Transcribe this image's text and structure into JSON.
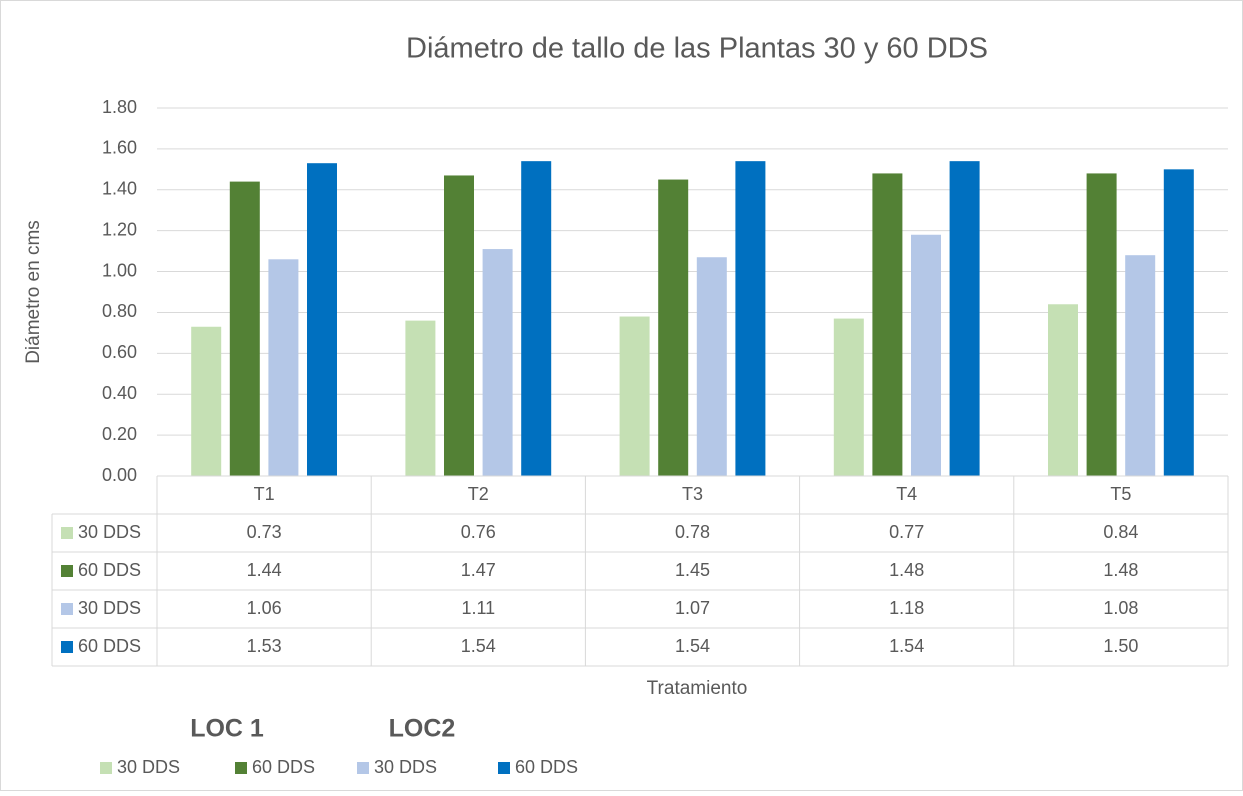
{
  "chart_data": {
    "type": "bar",
    "title": "Diámetro de tallo de las Plantas 30 y 60 DDS",
    "x_label": "Tratamiento",
    "y_label": "Diámetro en cms",
    "annotations": [
      "LOC 1",
      "LOC2"
    ],
    "categories": [
      "T1",
      "T2",
      "T3",
      "T4",
      "T5"
    ],
    "series": [
      {
        "name": "30 DDS",
        "color": "#c5e0b4",
        "values": [
          0.73,
          0.76,
          0.78,
          0.77,
          0.84
        ],
        "value_labels": [
          "0.73",
          "0.76",
          "0.78",
          "0.77",
          "0.84"
        ]
      },
      {
        "name": "60 DDS",
        "color": "#538135",
        "values": [
          1.44,
          1.47,
          1.45,
          1.48,
          1.48
        ],
        "value_labels": [
          "1.44",
          "1.47",
          "1.45",
          "1.48",
          "1.48"
        ]
      },
      {
        "name": "30 DDS",
        "color": "#b4c7e7",
        "values": [
          1.06,
          1.11,
          1.07,
          1.18,
          1.08
        ],
        "value_labels": [
          "1.06",
          "1.11",
          "1.07",
          "1.18",
          "1.08"
        ]
      },
      {
        "name": "60 DDS",
        "color": "#0070c0",
        "values": [
          1.53,
          1.54,
          1.54,
          1.54,
          1.5
        ],
        "value_labels": [
          "1.53",
          "1.54",
          "1.54",
          "1.54",
          "1.50"
        ]
      }
    ],
    "ylim": [
      0,
      1.8
    ],
    "yticks": [
      {
        "value": 0,
        "label": "0.00"
      },
      {
        "value": 0.2,
        "label": "0.20"
      },
      {
        "value": 0.4,
        "label": "0.40"
      },
      {
        "value": 0.6,
        "label": "0.60"
      },
      {
        "value": 0.8,
        "label": "0.80"
      },
      {
        "value": 1.0,
        "label": "1.00"
      },
      {
        "value": 1.2,
        "label": "1.20"
      },
      {
        "value": 1.4,
        "label": "1.40"
      },
      {
        "value": 1.6,
        "label": "1.60"
      },
      {
        "value": 1.8,
        "label": "1.80"
      }
    ],
    "grid": true,
    "legend": "bottom"
  }
}
